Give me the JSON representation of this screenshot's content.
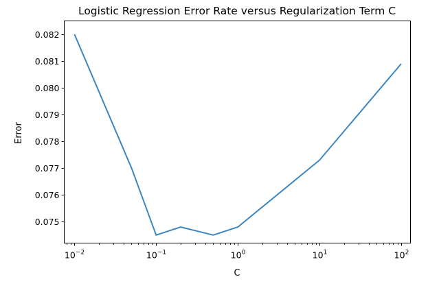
{
  "chart_data": {
    "type": "line",
    "title": "Logistic Regression Error Rate versus Regularization Term C",
    "xlabel": "C",
    "ylabel": "Error",
    "xscale": "log",
    "xlim": [
      0.0075,
      130
    ],
    "ylim": [
      0.0742,
      0.0825
    ],
    "x_ticks": [
      {
        "value": 0.01,
        "base": "10",
        "exp": "−2"
      },
      {
        "value": 0.1,
        "base": "10",
        "exp": "−1"
      },
      {
        "value": 1,
        "base": "10",
        "exp": "0"
      },
      {
        "value": 10,
        "base": "10",
        "exp": "1"
      },
      {
        "value": 100,
        "base": "10",
        "exp": "2"
      }
    ],
    "y_ticks": [
      {
        "value": 0.075,
        "label": "0.075"
      },
      {
        "value": 0.076,
        "label": "0.076"
      },
      {
        "value": 0.077,
        "label": "0.077"
      },
      {
        "value": 0.078,
        "label": "0.078"
      },
      {
        "value": 0.079,
        "label": "0.079"
      },
      {
        "value": 0.08,
        "label": "0.080"
      },
      {
        "value": 0.081,
        "label": "0.081"
      },
      {
        "value": 0.082,
        "label": "0.082"
      }
    ],
    "grid": false,
    "series": [
      {
        "color": "#3b86c1",
        "x": [
          0.01,
          0.05,
          0.1,
          0.2,
          0.5,
          1,
          10,
          100
        ],
        "y": [
          0.082,
          0.077,
          0.0745,
          0.0748,
          0.0745,
          0.0748,
          0.0773,
          0.0809
        ]
      }
    ]
  }
}
